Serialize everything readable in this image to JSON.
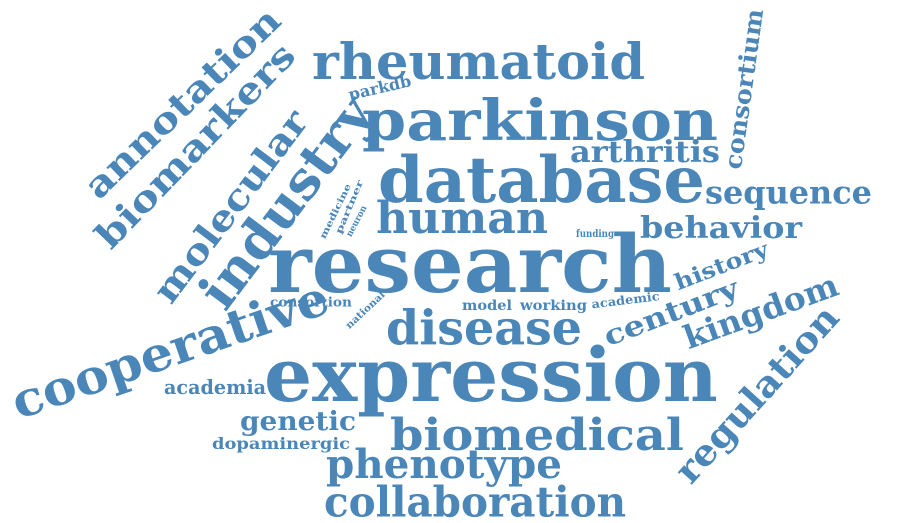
{
  "theme": {
    "word_color": "#4a86b8",
    "background": "#ffffff"
  },
  "words": {
    "research": "research",
    "expression": "expression",
    "database": "database",
    "parkinson": "parkinson",
    "rheumatoid": "rheumatoid",
    "disease": "disease",
    "human": "human",
    "biomedical": "biomedical",
    "industry": "industry",
    "cooperative": "cooperative",
    "collaboration": "collaboration",
    "phenotype": "phenotype",
    "annotation": "annotation",
    "biomarkers": "biomarkers",
    "molecular": "molecular",
    "regulation": "regulation",
    "sequence": "sequence",
    "arthritis": "arthritis",
    "consortium": "consortium",
    "behavior": "behavior",
    "kingdom": "kingdom",
    "century": "century",
    "history": "history",
    "genetic": "genetic",
    "academia": "academia",
    "dopaminergic": "dopaminergic",
    "parkdb": "parkdb",
    "consortion": "consortion",
    "model": "model",
    "working": "working",
    "academic": "academic",
    "national": "national",
    "funding": "funding",
    "medicine": "medicine",
    "partner": "partner",
    "neuron": "neuron"
  }
}
